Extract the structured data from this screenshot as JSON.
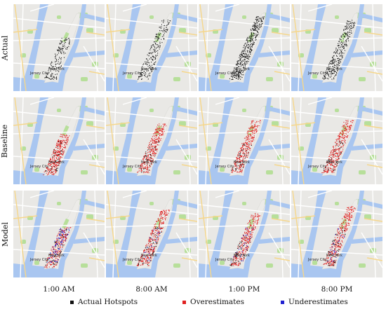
{
  "rows": [
    {
      "label": "Actual",
      "key": "actual"
    },
    {
      "label": "Baseline",
      "key": "baseline"
    },
    {
      "label": "Model",
      "key": "model"
    }
  ],
  "columns": [
    "1:00 AM",
    "8:00 AM",
    "1:00 PM",
    "8:00 PM"
  ],
  "map_labels": {
    "city": "New York",
    "jersey": "Jersey City"
  },
  "legend": [
    {
      "label": "Actual Hotspots",
      "color": "#111111"
    },
    {
      "label": "Overestimates",
      "color": "#e02020"
    },
    {
      "label": "Underestimates",
      "color": "#2020d0"
    }
  ],
  "colors": {
    "water": "#a9c6f0",
    "land": "#e9e8e5",
    "park": "#b7df9a",
    "road": "#ffffff",
    "highway": "#f6d78b"
  }
}
